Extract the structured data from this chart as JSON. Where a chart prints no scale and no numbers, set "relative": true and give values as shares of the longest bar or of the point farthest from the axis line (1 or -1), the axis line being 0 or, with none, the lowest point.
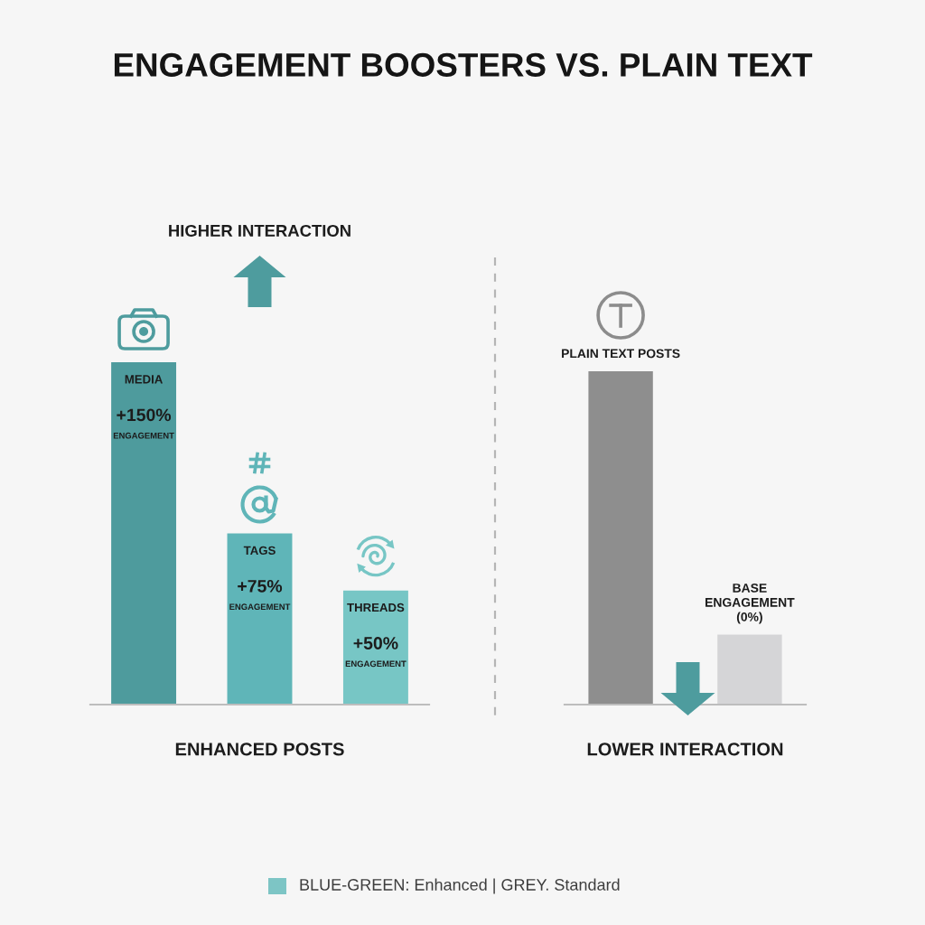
{
  "chart_data": [
    {
      "type": "bar",
      "title": "ENGAGEMENT BOOSTERS VS. PLAIN TEXT",
      "xlabel": "ENHANCED POSTS",
      "categories": [
        "MEDIA",
        "TAGS",
        "THREADS"
      ],
      "values": [
        150,
        75,
        50
      ],
      "colors": [
        "#4e9b9d",
        "#5fb5b8",
        "#77c6c5"
      ],
      "value_labels": [
        "+150%\nENGAGEMENT",
        "+75%\nENGAGEMENT",
        "+50%\nENGAGEMENT"
      ],
      "annotations": [
        "HIGHER INTERACTION",
        "BLUE-GREEN: Enhanced | GREY. Standard"
      ]
    },
    {
      "type": "bar",
      "xlabel": "LOWER INTERACTION",
      "categories": [
        "PLAIN TEXT POSTS",
        "BASE\nENGAGEMENT\n(0%)"
      ],
      "values": [
        1,
        0.21
      ],
      "colors": [
        "#8e8e8e",
        "#d5d5d7"
      ],
      "relative": true
    }
  ]
}
